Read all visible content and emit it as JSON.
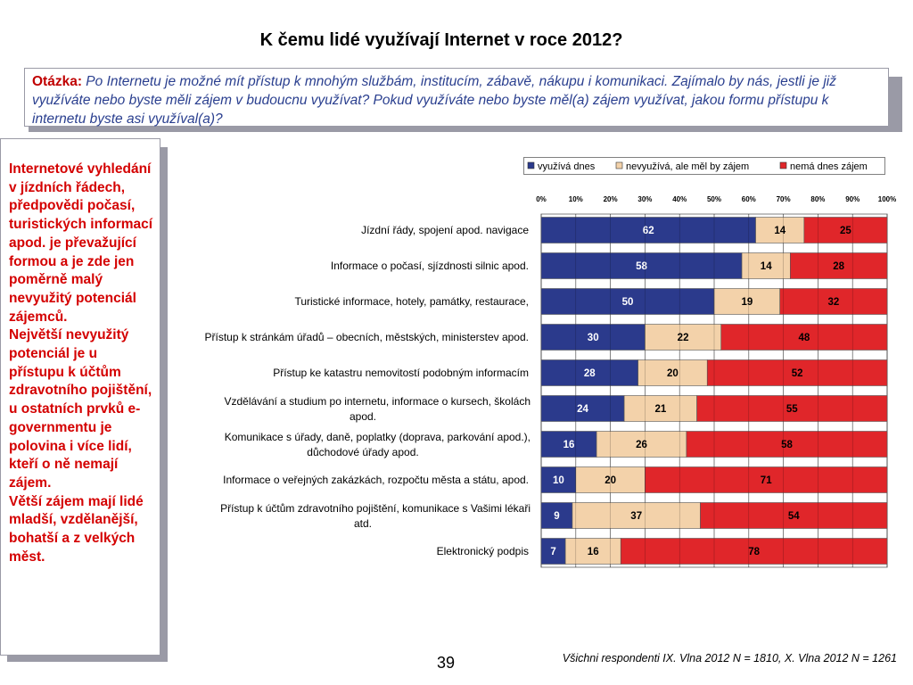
{
  "title": "K čemu lidé využívají Internet v roce 2012?",
  "question": {
    "label": "Otázka:",
    "text": " Po Internetu je možné mít přístup k mnohým službám, institucím, zábavě, nákupu i komunikaci. Zajímalo by nás, jestli je již využíváte nebo byste měli zájem v budoucnu využívat? Pokud využíváte nebo byste měl(a) zájem využívat, jakou formu přístupu k internetu byste asi využíval(a)?"
  },
  "left_panel": {
    "paragraphs": [
      "Internetové vyhledání  v jízdních řádech, předpovědi počasí, turistických informací apod. je převažující formou a je zde jen poměrně malý nevyužitý potenciál zájemců.",
      "Největší  nevyužitý potenciál je u přístupu k účtům zdravotního pojištění, u ostatních prvků e-governmentu je polovina i více lidí, kteří o ně nemají zájem.",
      "Větší zájem mají lidé mladší, vzdělanější, bohatší a z velkých měst."
    ]
  },
  "page_number": "39",
  "footnote": "Všichni respondenti IX. Vlna 2012 N = 1810, X. Vlna 2012 N = 1261",
  "chart_data": {
    "type": "bar",
    "orientation": "horizontal",
    "stacked": true,
    "percent_stacked": true,
    "categories": [
      "Jízdní řády, spojení apod. navigace",
      "Informace o počasí, sjízdnosti silnic apod.",
      "Turistické informace, hotely, památky, restaurace,",
      "Přístup k stránkám úřadů – obecních, městských, ministerstev apod.",
      "Přístup ke katastru nemovitostí podobným informacím",
      "Vzdělávání a studium po internetu, informace o kursech, školách apod.",
      "Komunikace s úřady, daně, poplatky (doprava, parkování apod.), důchodové úřady apod.",
      "Informace o veřejných zakázkách, rozpočtu města a státu, apod.",
      "Přístup k účtům zdravotního pojištění, komunikace s Vašimi lékaři atd.",
      "Elektronický podpis"
    ],
    "category_lines": [
      [
        "Jízdní řády, spojení apod. navigace"
      ],
      [
        "Informace o počasí, sjízdnosti silnic apod."
      ],
      [
        "Turistické informace, hotely, památky, restaurace,"
      ],
      [
        "Přístup k stránkám úřadů – obecních, městských, ministerstev apod."
      ],
      [
        "Přístup ke katastru nemovitostí podobným informacím"
      ],
      [
        "Vzdělávání a studium po internetu, informace o kursech, školách",
        "apod."
      ],
      [
        "Komunikace s úřady, daně, poplatky (doprava, parkování apod.),",
        "důchodové úřady apod."
      ],
      [
        "Informace o veřejných zakázkách, rozpočtu města a státu, apod."
      ],
      [
        "Přístup k účtům zdravotního pojištění, komunikace s Vašimi lékaři",
        "atd."
      ],
      [
        "Elektronický podpis"
      ]
    ],
    "series": [
      {
        "name": "využívá dnes",
        "color": "#2b3a8c",
        "label_color": "#ffffff",
        "values": [
          62,
          58,
          50,
          30,
          28,
          24,
          16,
          10,
          9,
          7
        ]
      },
      {
        "name": "nevyužívá, ale měl by zájem",
        "color": "#f3d2aa",
        "label_color": "#000000",
        "values": [
          14,
          14,
          19,
          22,
          20,
          21,
          26,
          20,
          37,
          16
        ]
      },
      {
        "name": "nemá dnes zájem",
        "color": "#e0262a",
        "label_color": "#000000",
        "values": [
          25,
          28,
          32,
          48,
          52,
          55,
          58,
          71,
          54,
          78
        ]
      }
    ],
    "xlim": [
      0,
      100
    ],
    "x_ticks": [
      "0%",
      "10%",
      "20%",
      "30%",
      "40%",
      "50%",
      "60%",
      "70%",
      "80%",
      "90%",
      "100%"
    ],
    "grid": true,
    "legend_position": "top-right"
  }
}
